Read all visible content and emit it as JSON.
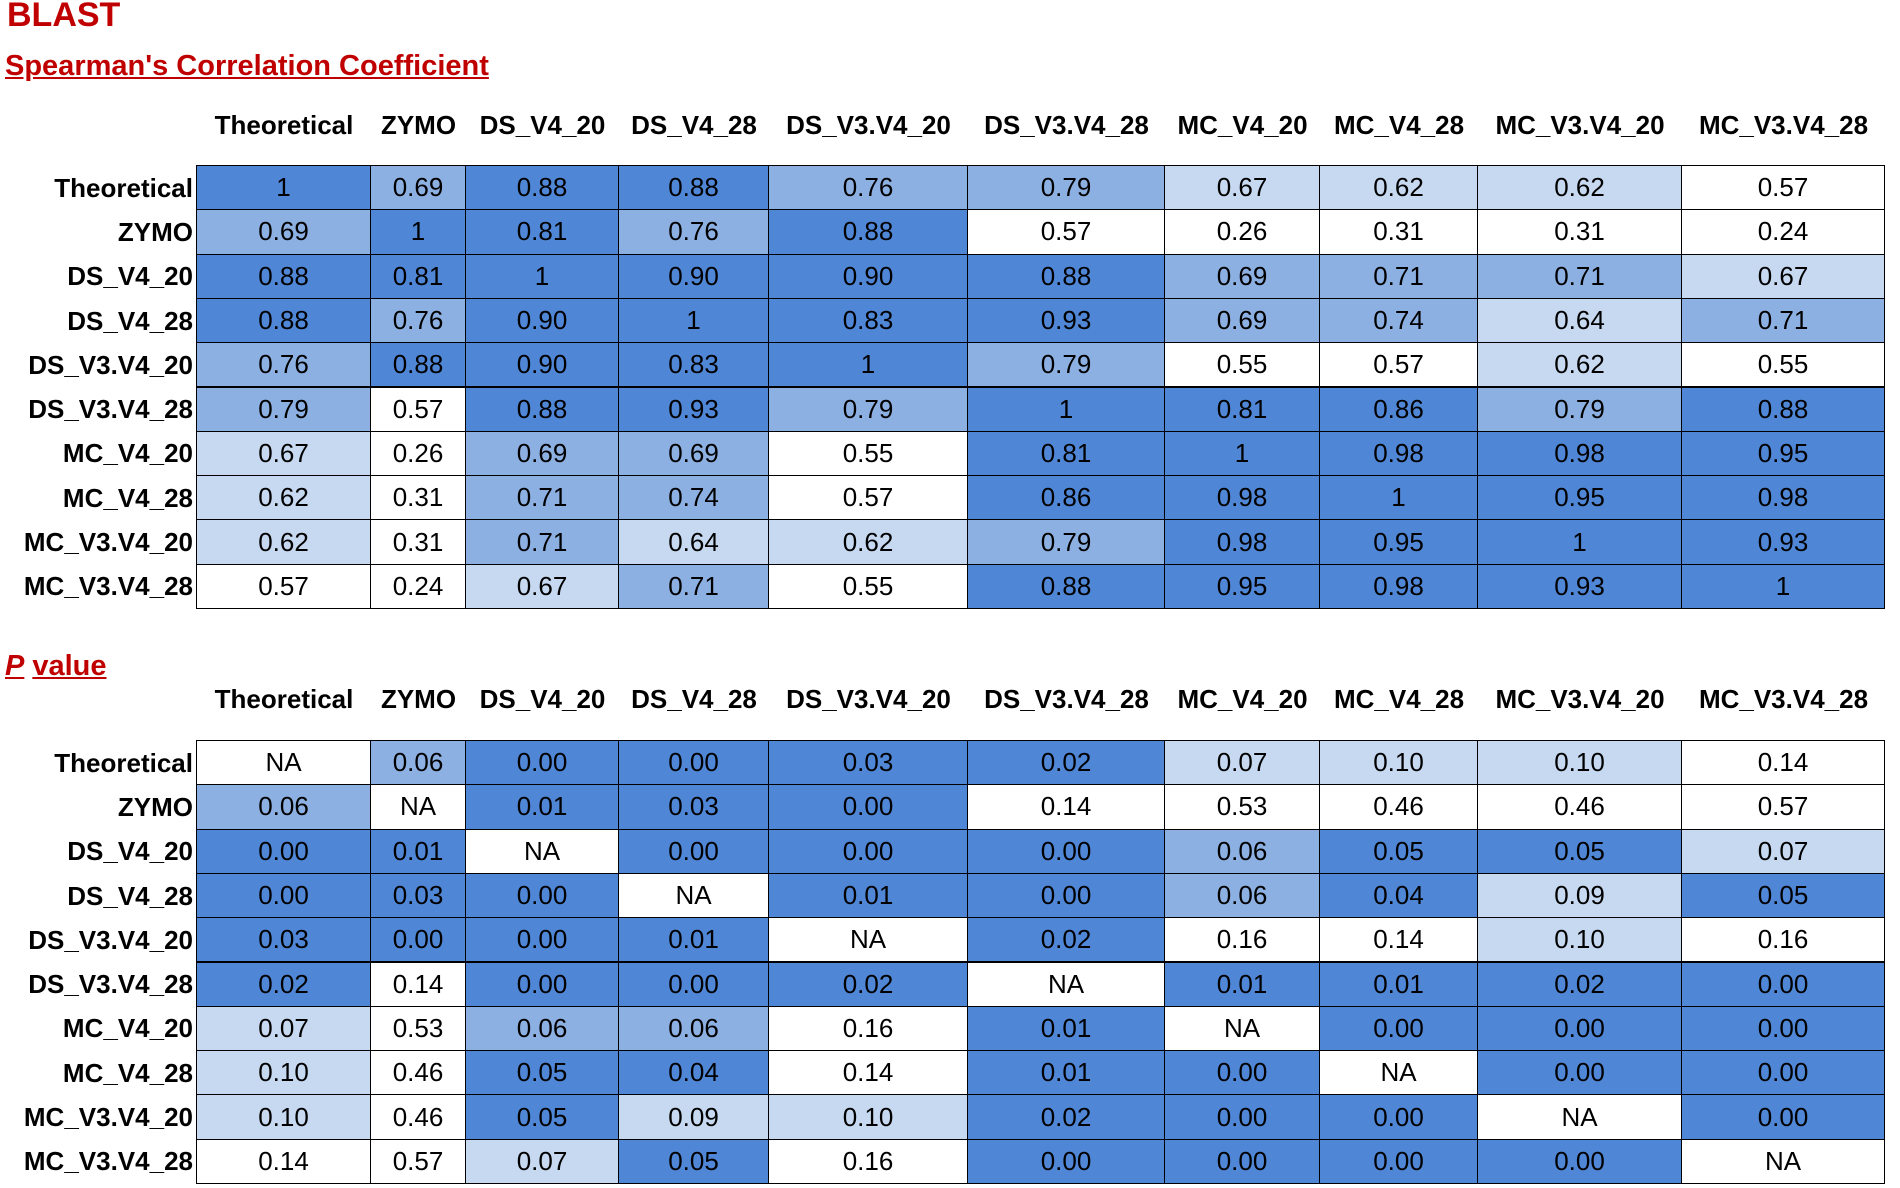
{
  "title": "BLAST",
  "tables": [
    {
      "heading": [
        "Spearman's Correlation Coefficient"
      ],
      "columns": [
        "Theoretical",
        "ZYMO",
        "DS_V4_20",
        "DS_V4_28",
        "DS_V3.V4_20",
        "DS_V3.V4_28",
        "MC_V4_20",
        "MC_V4_28",
        "MC_V3.V4_20",
        "MC_V3.V4_28"
      ],
      "row_labels": [
        "Theoretical",
        "ZYMO",
        "DS_V4_20",
        "DS_V4_28",
        "DS_V3.V4_20",
        "DS_V3.V4_28",
        "MC_V4_20",
        "MC_V4_28",
        "MC_V3.V4_20",
        "MC_V3.V4_28"
      ],
      "rows": [
        [
          "1",
          "0.69",
          "0.88",
          "0.88",
          "0.76",
          "0.79",
          "0.67",
          "0.62",
          "0.62",
          "0.57"
        ],
        [
          "0.69",
          "1",
          "0.81",
          "0.76",
          "0.88",
          "0.57",
          "0.26",
          "0.31",
          "0.31",
          "0.24"
        ],
        [
          "0.88",
          "0.81",
          "1",
          "0.90",
          "0.90",
          "0.88",
          "0.69",
          "0.71",
          "0.71",
          "0.67"
        ],
        [
          "0.88",
          "0.76",
          "0.90",
          "1",
          "0.83",
          "0.93",
          "0.69",
          "0.74",
          "0.64",
          "0.71"
        ],
        [
          "0.76",
          "0.88",
          "0.90",
          "0.83",
          "1",
          "0.79",
          "0.55",
          "0.57",
          "0.62",
          "0.55"
        ],
        [
          "0.79",
          "0.57",
          "0.88",
          "0.93",
          "0.79",
          "1",
          "0.81",
          "0.86",
          "0.79",
          "0.88"
        ],
        [
          "0.67",
          "0.26",
          "0.69",
          "0.69",
          "0.55",
          "0.81",
          "1",
          "0.98",
          "0.98",
          "0.95"
        ],
        [
          "0.62",
          "0.31",
          "0.71",
          "0.74",
          "0.57",
          "0.86",
          "0.98",
          "1",
          "0.95",
          "0.98"
        ],
        [
          "0.62",
          "0.31",
          "0.71",
          "0.64",
          "0.62",
          "0.79",
          "0.98",
          "0.95",
          "1",
          "0.93"
        ],
        [
          "0.57",
          "0.24",
          "0.67",
          "0.71",
          "0.55",
          "0.88",
          "0.95",
          "0.98",
          "0.93",
          "1"
        ]
      ],
      "cell_colors": [
        [
          "#4f86d6",
          "#8db0e2",
          "#4f86d6",
          "#4f86d6",
          "#8db0e2",
          "#8db0e2",
          "#c6d9f1",
          "#c6d9f1",
          "#c6d9f1",
          "#ffffff"
        ],
        [
          "#8db0e2",
          "#4f86d6",
          "#4f86d6",
          "#8db0e2",
          "#4f86d6",
          "#ffffff",
          "#ffffff",
          "#ffffff",
          "#ffffff",
          "#ffffff"
        ],
        [
          "#4f86d6",
          "#4f86d6",
          "#4f86d6",
          "#4f86d6",
          "#4f86d6",
          "#4f86d6",
          "#8db0e2",
          "#8db0e2",
          "#8db0e2",
          "#c6d9f1"
        ],
        [
          "#4f86d6",
          "#8db0e2",
          "#4f86d6",
          "#4f86d6",
          "#4f86d6",
          "#4f86d6",
          "#8db0e2",
          "#8db0e2",
          "#c6d9f1",
          "#8db0e2"
        ],
        [
          "#8db0e2",
          "#4f86d6",
          "#4f86d6",
          "#4f86d6",
          "#4f86d6",
          "#8db0e2",
          "#ffffff",
          "#ffffff",
          "#c6d9f1",
          "#ffffff"
        ],
        [
          "#8db0e2",
          "#ffffff",
          "#4f86d6",
          "#4f86d6",
          "#8db0e2",
          "#4f86d6",
          "#4f86d6",
          "#4f86d6",
          "#8db0e2",
          "#4f86d6"
        ],
        [
          "#c6d9f1",
          "#ffffff",
          "#8db0e2",
          "#8db0e2",
          "#ffffff",
          "#4f86d6",
          "#4f86d6",
          "#4f86d6",
          "#4f86d6",
          "#4f86d6"
        ],
        [
          "#c6d9f1",
          "#ffffff",
          "#8db0e2",
          "#8db0e2",
          "#ffffff",
          "#4f86d6",
          "#4f86d6",
          "#4f86d6",
          "#4f86d6",
          "#4f86d6"
        ],
        [
          "#c6d9f1",
          "#ffffff",
          "#8db0e2",
          "#c6d9f1",
          "#c6d9f1",
          "#8db0e2",
          "#4f86d6",
          "#4f86d6",
          "#4f86d6",
          "#4f86d6"
        ],
        [
          "#ffffff",
          "#ffffff",
          "#c6d9f1",
          "#8db0e2",
          "#ffffff",
          "#4f86d6",
          "#4f86d6",
          "#4f86d6",
          "#4f86d6",
          "#4f86d6"
        ]
      ]
    },
    {
      "heading": [
        "P",
        "value"
      ],
      "columns": [
        "Theoretical",
        "ZYMO",
        "DS_V4_20",
        "DS_V4_28",
        "DS_V3.V4_20",
        "DS_V3.V4_28",
        "MC_V4_20",
        "MC_V4_28",
        "MC_V3.V4_20",
        "MC_V3.V4_28"
      ],
      "row_labels": [
        "Theoretical",
        "ZYMO",
        "DS_V4_20",
        "DS_V4_28",
        "DS_V3.V4_20",
        "DS_V3.V4_28",
        "MC_V4_20",
        "MC_V4_28",
        "MC_V3.V4_20",
        "MC_V3.V4_28"
      ],
      "rows": [
        [
          "NA",
          "0.06",
          "0.00",
          "0.00",
          "0.03",
          "0.02",
          "0.07",
          "0.10",
          "0.10",
          "0.14"
        ],
        [
          "0.06",
          "NA",
          "0.01",
          "0.03",
          "0.00",
          "0.14",
          "0.53",
          "0.46",
          "0.46",
          "0.57"
        ],
        [
          "0.00",
          "0.01",
          "NA",
          "0.00",
          "0.00",
          "0.00",
          "0.06",
          "0.05",
          "0.05",
          "0.07"
        ],
        [
          "0.00",
          "0.03",
          "0.00",
          "NA",
          "0.01",
          "0.00",
          "0.06",
          "0.04",
          "0.09",
          "0.05"
        ],
        [
          "0.03",
          "0.00",
          "0.00",
          "0.01",
          "NA",
          "0.02",
          "0.16",
          "0.14",
          "0.10",
          "0.16"
        ],
        [
          "0.02",
          "0.14",
          "0.00",
          "0.00",
          "0.02",
          "NA",
          "0.01",
          "0.01",
          "0.02",
          "0.00"
        ],
        [
          "0.07",
          "0.53",
          "0.06",
          "0.06",
          "0.16",
          "0.01",
          "NA",
          "0.00",
          "0.00",
          "0.00"
        ],
        [
          "0.10",
          "0.46",
          "0.05",
          "0.04",
          "0.14",
          "0.01",
          "0.00",
          "NA",
          "0.00",
          "0.00"
        ],
        [
          "0.10",
          "0.46",
          "0.05",
          "0.09",
          "0.10",
          "0.02",
          "0.00",
          "0.00",
          "NA",
          "0.00"
        ],
        [
          "0.14",
          "0.57",
          "0.07",
          "0.05",
          "0.16",
          "0.00",
          "0.00",
          "0.00",
          "0.00",
          "NA"
        ]
      ],
      "cell_colors": [
        [
          "#ffffff",
          "#8db0e2",
          "#4f86d6",
          "#4f86d6",
          "#4f86d6",
          "#4f86d6",
          "#c6d9f1",
          "#c6d9f1",
          "#c6d9f1",
          "#ffffff"
        ],
        [
          "#8db0e2",
          "#ffffff",
          "#4f86d6",
          "#4f86d6",
          "#4f86d6",
          "#ffffff",
          "#ffffff",
          "#ffffff",
          "#ffffff",
          "#ffffff"
        ],
        [
          "#4f86d6",
          "#4f86d6",
          "#ffffff",
          "#4f86d6",
          "#4f86d6",
          "#4f86d6",
          "#8db0e2",
          "#4f86d6",
          "#4f86d6",
          "#c6d9f1"
        ],
        [
          "#4f86d6",
          "#4f86d6",
          "#4f86d6",
          "#ffffff",
          "#4f86d6",
          "#4f86d6",
          "#8db0e2",
          "#4f86d6",
          "#c6d9f1",
          "#4f86d6"
        ],
        [
          "#4f86d6",
          "#4f86d6",
          "#4f86d6",
          "#4f86d6",
          "#ffffff",
          "#4f86d6",
          "#ffffff",
          "#ffffff",
          "#c6d9f1",
          "#ffffff"
        ],
        [
          "#4f86d6",
          "#ffffff",
          "#4f86d6",
          "#4f86d6",
          "#4f86d6",
          "#ffffff",
          "#4f86d6",
          "#4f86d6",
          "#4f86d6",
          "#4f86d6"
        ],
        [
          "#c6d9f1",
          "#ffffff",
          "#8db0e2",
          "#8db0e2",
          "#ffffff",
          "#4f86d6",
          "#ffffff",
          "#4f86d6",
          "#4f86d6",
          "#4f86d6"
        ],
        [
          "#c6d9f1",
          "#ffffff",
          "#4f86d6",
          "#4f86d6",
          "#ffffff",
          "#4f86d6",
          "#4f86d6",
          "#ffffff",
          "#4f86d6",
          "#4f86d6"
        ],
        [
          "#c6d9f1",
          "#ffffff",
          "#4f86d6",
          "#c6d9f1",
          "#c6d9f1",
          "#4f86d6",
          "#4f86d6",
          "#4f86d6",
          "#ffffff",
          "#4f86d6"
        ],
        [
          "#ffffff",
          "#ffffff",
          "#c6d9f1",
          "#4f86d6",
          "#ffffff",
          "#4f86d6",
          "#4f86d6",
          "#4f86d6",
          "#4f86d6",
          "#ffffff"
        ]
      ]
    }
  ]
}
